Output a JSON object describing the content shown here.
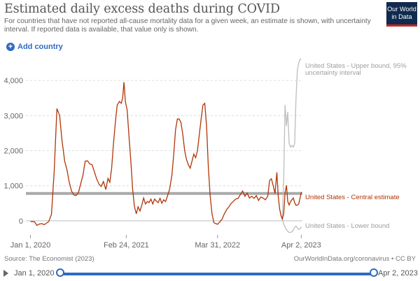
{
  "header": {
    "title": "Estimated daily excess deaths during COVID",
    "subtitle": "For countries that have not reported all-cause mortality data for a given week, an estimate is shown, with uncertainty interval. If reported data is available, that value only is shown.",
    "logo_line1": "Our World",
    "logo_line2": "in Data"
  },
  "controls": {
    "add_country_label": "Add country"
  },
  "footer": {
    "source": "Source: The Economist (2023)",
    "credit": "OurWorldInData.org/coronavirus • CC BY"
  },
  "timeline": {
    "start_label": "Jan 1, 2020",
    "end_label": "Apr 2, 2023"
  },
  "colors": {
    "central": "#b13507",
    "bound": "#bdbdbd",
    "reference": "#9a9a9a",
    "accent": "#2c6bc4"
  },
  "chart_data": {
    "type": "line",
    "ylim": [
      -400,
      4600
    ],
    "yticks": [
      0,
      1000,
      2000,
      3000,
      4000
    ],
    "ytick_labels": [
      "0",
      "1,000",
      "2,000",
      "3,000",
      "4,000"
    ],
    "xticks": [
      {
        "x": 0,
        "label": "Jan 1, 2020"
      },
      {
        "x": 420,
        "label": "Feb 24, 2021"
      },
      {
        "x": 820,
        "label": "Mar 31, 2022"
      },
      {
        "x": 1187,
        "label": "Apr 2, 2023"
      }
    ],
    "xlim": [
      -20,
      1192
    ],
    "reference_line": {
      "y": 780
    },
    "central_estimate": {
      "name": "United States - Central estimate",
      "points": [
        [
          0,
          -20
        ],
        [
          18,
          -30
        ],
        [
          28,
          -130
        ],
        [
          40,
          -90
        ],
        [
          50,
          -80
        ],
        [
          60,
          -110
        ],
        [
          70,
          -70
        ],
        [
          80,
          -20
        ],
        [
          92,
          180
        ],
        [
          104,
          1400
        ],
        [
          116,
          3200
        ],
        [
          128,
          3000
        ],
        [
          138,
          2300
        ],
        [
          150,
          1700
        ],
        [
          160,
          1450
        ],
        [
          170,
          1100
        ],
        [
          180,
          850
        ],
        [
          190,
          740
        ],
        [
          200,
          720
        ],
        [
          210,
          800
        ],
        [
          220,
          1050
        ],
        [
          230,
          1300
        ],
        [
          240,
          1700
        ],
        [
          250,
          1710
        ],
        [
          260,
          1620
        ],
        [
          270,
          1600
        ],
        [
          280,
          1400
        ],
        [
          290,
          1200
        ],
        [
          300,
          1050
        ],
        [
          310,
          980
        ],
        [
          320,
          1120
        ],
        [
          330,
          890
        ],
        [
          340,
          1210
        ],
        [
          348,
          1100
        ],
        [
          356,
          1500
        ],
        [
          364,
          2200
        ],
        [
          372,
          2800
        ],
        [
          380,
          3300
        ],
        [
          390,
          3400
        ],
        [
          398,
          3350
        ],
        [
          404,
          3500
        ],
        [
          410,
          3950
        ],
        [
          416,
          3400
        ],
        [
          424,
          3150
        ],
        [
          432,
          2400
        ],
        [
          440,
          1700
        ],
        [
          448,
          900
        ],
        [
          456,
          400
        ],
        [
          464,
          200
        ],
        [
          472,
          400
        ],
        [
          480,
          280
        ],
        [
          488,
          450
        ],
        [
          496,
          650
        ],
        [
          504,
          480
        ],
        [
          512,
          550
        ],
        [
          520,
          520
        ],
        [
          528,
          620
        ],
        [
          536,
          480
        ],
        [
          544,
          620
        ],
        [
          552,
          560
        ],
        [
          560,
          520
        ],
        [
          568,
          640
        ],
        [
          576,
          500
        ],
        [
          584,
          600
        ],
        [
          592,
          550
        ],
        [
          600,
          700
        ],
        [
          610,
          900
        ],
        [
          620,
          1300
        ],
        [
          628,
          1900
        ],
        [
          636,
          2600
        ],
        [
          644,
          2900
        ],
        [
          652,
          2900
        ],
        [
          660,
          2800
        ],
        [
          668,
          2450
        ],
        [
          676,
          2000
        ],
        [
          684,
          1750
        ],
        [
          692,
          1600
        ],
        [
          700,
          1500
        ],
        [
          708,
          1700
        ],
        [
          716,
          1900
        ],
        [
          724,
          1800
        ],
        [
          732,
          2000
        ],
        [
          740,
          2450
        ],
        [
          748,
          2900
        ],
        [
          756,
          3300
        ],
        [
          764,
          3350
        ],
        [
          772,
          2700
        ],
        [
          780,
          1500
        ],
        [
          788,
          700
        ],
        [
          796,
          200
        ],
        [
          804,
          -50
        ],
        [
          812,
          -80
        ],
        [
          820,
          -100
        ],
        [
          830,
          -30
        ],
        [
          840,
          50
        ],
        [
          850,
          200
        ],
        [
          860,
          320
        ],
        [
          870,
          400
        ],
        [
          880,
          500
        ],
        [
          890,
          560
        ],
        [
          900,
          620
        ],
        [
          910,
          640
        ],
        [
          920,
          750
        ],
        [
          930,
          850
        ],
        [
          940,
          700
        ],
        [
          950,
          790
        ],
        [
          960,
          650
        ],
        [
          970,
          700
        ],
        [
          980,
          640
        ],
        [
          990,
          720
        ],
        [
          1000,
          580
        ],
        [
          1010,
          680
        ],
        [
          1020,
          650
        ],
        [
          1030,
          600
        ],
        [
          1040,
          700
        ],
        [
          1048,
          1150
        ],
        [
          1056,
          1200
        ],
        [
          1064,
          1000
        ],
        [
          1072,
          780
        ],
        [
          1080,
          1380
        ],
        [
          1086,
          700
        ],
        [
          1092,
          350
        ],
        [
          1098,
          150
        ],
        [
          1104,
          50
        ],
        [
          1110,
          200
        ],
        [
          1116,
          800
        ],
        [
          1122,
          1010
        ],
        [
          1128,
          550
        ],
        [
          1134,
          450
        ],
        [
          1140,
          550
        ],
        [
          1146,
          600
        ],
        [
          1152,
          650
        ],
        [
          1158,
          520
        ],
        [
          1164,
          440
        ],
        [
          1170,
          450
        ],
        [
          1176,
          480
        ],
        [
          1182,
          650
        ],
        [
          1187,
          820
        ]
      ]
    },
    "upper_bound": {
      "name": "United States - Upper bound, 95% uncertainty interval",
      "points": [
        [
          1104,
          50
        ],
        [
          1110,
          1200
        ],
        [
          1116,
          3300
        ],
        [
          1122,
          2700
        ],
        [
          1128,
          3100
        ],
        [
          1134,
          2200
        ],
        [
          1140,
          2100
        ],
        [
          1146,
          2150
        ],
        [
          1152,
          2100
        ],
        [
          1158,
          2200
        ],
        [
          1164,
          3500
        ],
        [
          1170,
          4300
        ],
        [
          1176,
          4500
        ],
        [
          1182,
          4600
        ],
        [
          1187,
          4620
        ]
      ]
    },
    "lower_bound": {
      "name": "United States - Lower bound",
      "points": [
        [
          1104,
          50
        ],
        [
          1110,
          -80
        ],
        [
          1116,
          -180
        ],
        [
          1122,
          -250
        ],
        [
          1128,
          -300
        ],
        [
          1134,
          -330
        ],
        [
          1140,
          -330
        ],
        [
          1146,
          -310
        ],
        [
          1152,
          -270
        ],
        [
          1158,
          -180
        ],
        [
          1164,
          -150
        ],
        [
          1170,
          -200
        ],
        [
          1176,
          -250
        ],
        [
          1182,
          -220
        ],
        [
          1187,
          -170
        ]
      ]
    }
  }
}
